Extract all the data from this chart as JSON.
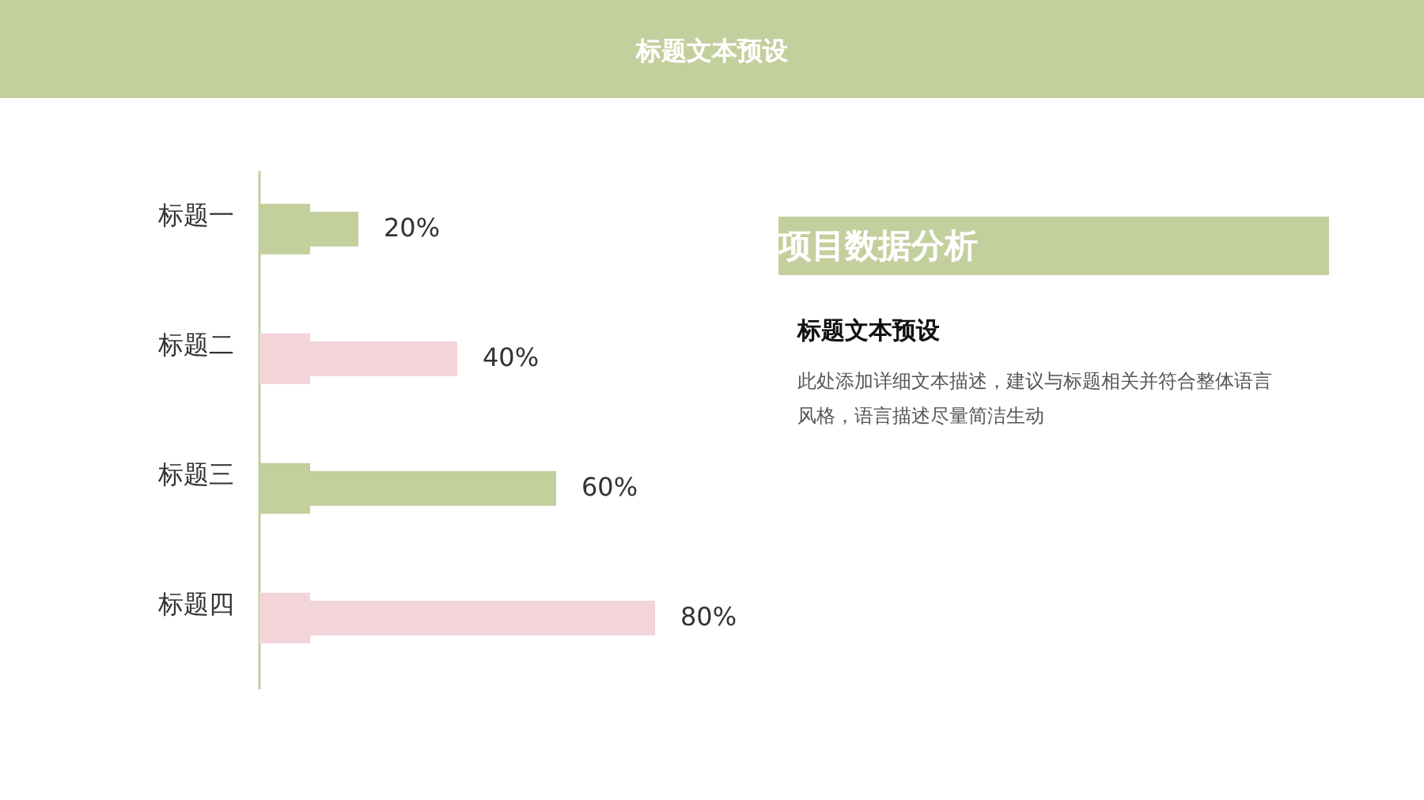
{
  "chart_data": {
    "type": "bar",
    "orientation": "horizontal",
    "title": "标题文本预设",
    "categories": [
      "标题一",
      "标题二",
      "标题三",
      "标题四"
    ],
    "values": [
      20,
      40,
      60,
      80
    ],
    "value_labels": [
      "20%",
      "40%",
      "60%",
      "80%"
    ],
    "colors": [
      "#c4cf9e",
      "#f2d4d9",
      "#c4cf9e",
      "#f2d4d9"
    ],
    "annotations": [
      "项目数据分析",
      "标题文本预设",
      "此处添加详细文本描述，建议与标题相关并符合整体语言风格，语言描述尽量简洁生动"
    ]
  }
}
